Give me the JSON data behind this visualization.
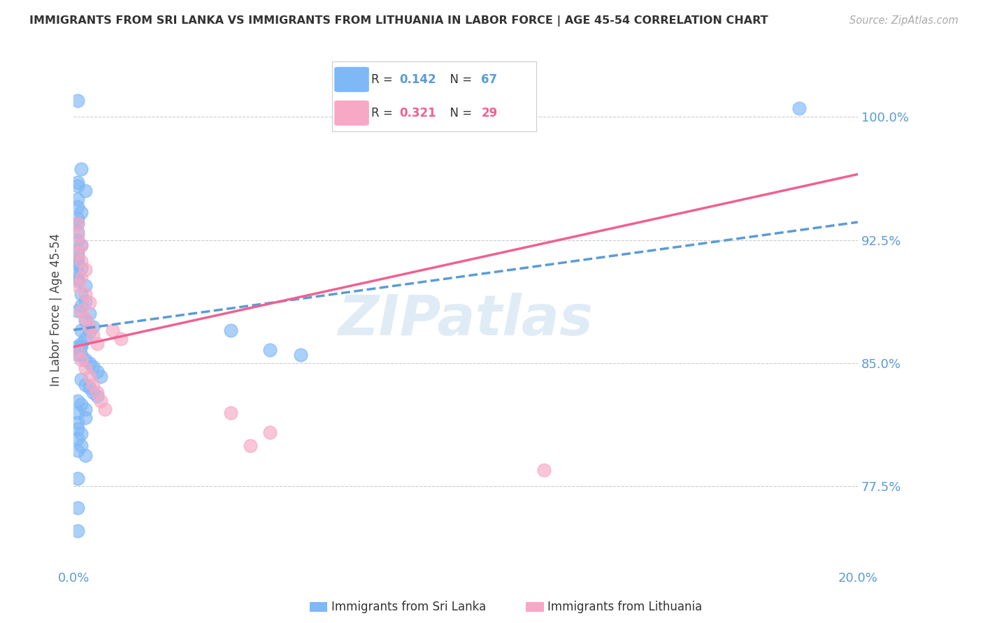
{
  "title": "IMMIGRANTS FROM SRI LANKA VS IMMIGRANTS FROM LITHUANIA IN LABOR FORCE | AGE 45-54 CORRELATION CHART",
  "source": "Source: ZipAtlas.com",
  "ylabel": "In Labor Force | Age 45-54",
  "xlim": [
    0.0,
    0.2
  ],
  "ylim": [
    0.725,
    1.04
  ],
  "yticks": [
    0.775,
    0.85,
    0.925,
    1.0
  ],
  "ytick_labels": [
    "77.5%",
    "85.0%",
    "92.5%",
    "100.0%"
  ],
  "xticks": [
    0.0,
    0.04,
    0.08,
    0.12,
    0.16,
    0.2
  ],
  "xtick_labels": [
    "0.0%",
    "",
    "",
    "",
    "",
    "20.0%"
  ],
  "watermark": "ZIPatlas",
  "sri_lanka_color": "#7EB8F7",
  "lithuania_color": "#F7A8C4",
  "sri_lanka_line_color": "#5B9BD5",
  "lithuania_line_color": "#F06090",
  "sri_lanka_R": 0.142,
  "sri_lanka_N": 67,
  "lithuania_R": 0.321,
  "lithuania_N": 29,
  "sl_x": [
    0.001,
    0.002,
    0.001,
    0.001,
    0.003,
    0.001,
    0.001,
    0.002,
    0.001,
    0.001,
    0.001,
    0.001,
    0.002,
    0.001,
    0.001,
    0.001,
    0.001,
    0.002,
    0.001,
    0.001,
    0.001,
    0.003,
    0.002,
    0.003,
    0.002,
    0.001,
    0.004,
    0.003,
    0.005,
    0.004,
    0.003,
    0.002,
    0.001,
    0.001,
    0.002,
    0.003,
    0.004,
    0.005,
    0.006,
    0.007,
    0.002,
    0.003,
    0.004,
    0.005,
    0.006,
    0.001,
    0.002,
    0.003,
    0.001,
    0.002,
    0.001,
    0.002,
    0.003,
    0.001,
    0.001,
    0.002,
    0.001,
    0.002,
    0.001,
    0.04,
    0.05,
    0.058,
    0.003,
    0.001,
    0.001,
    0.001,
    0.185
  ],
  "sl_y": [
    1.01,
    0.968,
    0.96,
    0.958,
    0.955,
    0.95,
    0.945,
    0.942,
    0.938,
    0.935,
    0.93,
    0.925,
    0.922,
    0.918,
    0.915,
    0.912,
    0.91,
    0.908,
    0.905,
    0.902,
    0.9,
    0.897,
    0.892,
    0.888,
    0.885,
    0.882,
    0.88,
    0.876,
    0.872,
    0.869,
    0.865,
    0.862,
    0.86,
    0.857,
    0.855,
    0.852,
    0.85,
    0.848,
    0.845,
    0.842,
    0.84,
    0.837,
    0.835,
    0.832,
    0.83,
    0.827,
    0.825,
    0.822,
    0.82,
    0.87,
    0.855,
    0.86,
    0.817,
    0.814,
    0.81,
    0.807,
    0.804,
    0.8,
    0.797,
    0.87,
    0.858,
    0.855,
    0.794,
    0.78,
    0.762,
    0.748,
    1.005
  ],
  "lt_x": [
    0.001,
    0.001,
    0.002,
    0.001,
    0.002,
    0.003,
    0.002,
    0.001,
    0.003,
    0.004,
    0.002,
    0.003,
    0.004,
    0.005,
    0.006,
    0.001,
    0.002,
    0.003,
    0.004,
    0.005,
    0.006,
    0.007,
    0.008,
    0.01,
    0.012,
    0.04,
    0.05,
    0.045,
    0.12
  ],
  "lt_y": [
    0.935,
    0.928,
    0.922,
    0.917,
    0.912,
    0.907,
    0.902,
    0.897,
    0.892,
    0.887,
    0.882,
    0.877,
    0.872,
    0.867,
    0.862,
    0.857,
    0.852,
    0.847,
    0.842,
    0.837,
    0.832,
    0.827,
    0.822,
    0.87,
    0.865,
    0.82,
    0.808,
    0.8,
    0.785
  ]
}
